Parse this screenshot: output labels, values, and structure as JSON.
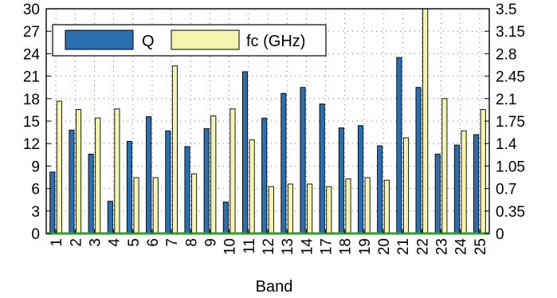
{
  "chart_data": {
    "type": "bar",
    "xlabel": "Band",
    "categories": [
      "1",
      "2",
      "3",
      "4",
      "5",
      "6",
      "7",
      "8",
      "9",
      "10",
      "11",
      "12",
      "13",
      "14",
      "17",
      "18",
      "19",
      "20",
      "21",
      "22",
      "23",
      "24",
      "25"
    ],
    "series": [
      {
        "name": "Q",
        "axis": "left",
        "color": "#2a6fb0",
        "values": [
          8.2,
          13.8,
          10.6,
          4.3,
          12.3,
          15.6,
          13.7,
          11.6,
          14.0,
          4.2,
          21.6,
          15.4,
          18.7,
          19.5,
          17.3,
          14.1,
          14.4,
          11.7,
          23.5,
          19.5,
          10.6,
          11.8,
          13.2
        ]
      },
      {
        "name": "fc (GHz)",
        "axis": "right",
        "color": "#f3f5b0",
        "values": [
          2.06,
          1.93,
          1.8,
          1.94,
          0.87,
          0.87,
          2.61,
          0.93,
          1.83,
          1.94,
          1.46,
          0.73,
          0.77,
          0.77,
          0.73,
          0.85,
          0.87,
          0.83,
          1.49,
          3.55,
          2.1,
          1.6,
          1.93
        ]
      }
    ],
    "ylim_left": [
      0,
      30
    ],
    "ylim_right": [
      0,
      3.5
    ],
    "yticks_left": [
      "0",
      "3",
      "6",
      "9",
      "12",
      "15",
      "18",
      "21",
      "24",
      "27",
      "30"
    ],
    "yticks_right": [
      "0",
      "0.35",
      "0.7",
      "1.05",
      "1.4",
      "1.75",
      "2.1",
      "2.45",
      "2.8",
      "3.15",
      "3.5"
    ],
    "grid": true,
    "legend_position": "top-left"
  }
}
